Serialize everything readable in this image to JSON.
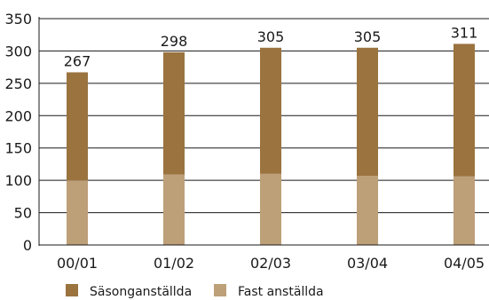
{
  "chart_data": {
    "type": "bar",
    "stacked": true,
    "title": "",
    "xlabel": "",
    "ylabel": "",
    "ylim": [
      0,
      350
    ],
    "yticks": [
      0,
      50,
      100,
      150,
      200,
      250,
      300,
      350
    ],
    "grid": true,
    "legend_position": "bottom",
    "categories": [
      "00/01",
      "01/02",
      "02/03",
      "03/04",
      "04/05"
    ],
    "series": [
      {
        "name": "Fast anställda",
        "color": "#bd9f78",
        "values": [
          100,
          109,
          110,
          107,
          106
        ]
      },
      {
        "name": "Säsonganställda",
        "color": "#9a733f",
        "values": [
          167,
          189,
          195,
          198,
          205
        ]
      }
    ],
    "totals": [
      267,
      298,
      305,
      305,
      311
    ],
    "total_labels": [
      "267",
      "298",
      "305",
      "305",
      "311"
    ],
    "legend_order": [
      "Säsonganställda",
      "Fast anställda"
    ]
  }
}
